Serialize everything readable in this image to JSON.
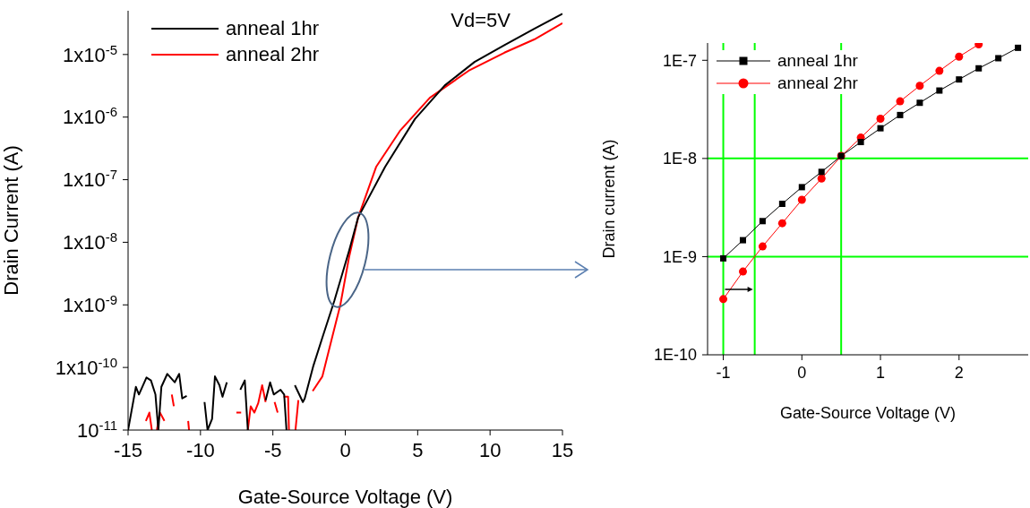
{
  "chart_data": [
    {
      "type": "line",
      "xlabel": "Gate-Source Voltage (V)",
      "ylabel": "Drain Current (A)",
      "log": "y",
      "legend": "top left",
      "annotations": [
        "Vd=5V"
      ],
      "xlim": [
        -15,
        15
      ],
      "xticks": [
        -15,
        -10,
        -5,
        0,
        5,
        10,
        15
      ],
      "ylim": [
        1e-11,
        5e-05
      ],
      "yticks": [
        {
          "value": 1e-11,
          "label": "10$^{-11}$"
        },
        {
          "value": 1e-10,
          "label": "1x10$^{-10}$"
        },
        {
          "value": 1e-09,
          "label": "1x10$^{-9}$"
        },
        {
          "value": 1e-08,
          "label": "1x10$^{-8}$"
        },
        {
          "value": 1e-07,
          "label": "1x10$^{-7}$"
        },
        {
          "value": 1e-06,
          "label": "1x10$^{-6}$"
        },
        {
          "value": 1e-05,
          "label": "1x10$^{-5}$"
        }
      ],
      "series": [
        {
          "name": "anneal 1hr",
          "color": "#000000",
          "x": [
            -15,
            -14.46,
            -14.25,
            -13.73,
            -13.42,
            -13.11,
            -12.91,
            -12.7,
            -12.29,
            -11.78,
            -11.47,
            -11.26,
            -10.95,
            -10.3,
            -9.72,
            -9.51,
            -9.2,
            -9,
            -8.69,
            -8.48,
            -8.18,
            -7.7,
            -7.25,
            -6.94,
            -6.73,
            -6.1,
            -5.5,
            -5.19,
            -4.94,
            -4.47,
            -4.22,
            -4.06,
            -3.8,
            -3.48,
            -2.93,
            -2.8,
            -2.2,
            -1.58,
            -0.76,
            0.27,
            0.89,
            2.75,
            4.81,
            6.87,
            8.93,
            10.99,
            13.05,
            15
          ],
          "values": [
            1e-11,
            4.9e-11,
            3.7e-11,
            6.9e-11,
            6.2e-11,
            3.7e-11,
            1e-11,
            4.9e-11,
            7.9e-11,
            5.8e-11,
            7.9e-11,
            3.2e-11,
            3.5e-11,
            null,
            2.8e-11,
            1e-11,
            1.5e-11,
            7.2e-11,
            5.2e-11,
            3.4e-11,
            5.8e-11,
            null,
            4.4e-11,
            6.2e-11,
            1e-11,
            null,
            3e-11,
            5.8e-11,
            3.7e-11,
            4.4e-11,
            3.7e-11,
            1e-11,
            null,
            5.2e-11,
            2.8e-11,
            3.2e-11,
            1.07e-10,
            3e-10,
            1.15e-09,
            7.4e-09,
            2.5e-08,
            1.6e-07,
            9.3e-07,
            3.2e-06,
            7.6e-06,
            1.41e-05,
            2.57e-05,
            4.47e-05
          ]
        },
        {
          "name": "anneal 2hr",
          "color": "#ff0000",
          "x": [
            -13.77,
            -13.53,
            -13.36,
            -13.2,
            -13.01,
            -12.8,
            -12.49,
            -12.2,
            -11.98,
            -11.84,
            -11.3,
            -10.85,
            -10.79,
            -9,
            -7.52,
            -7.19,
            -6.9,
            -6.73,
            -6.53,
            -6.28,
            -6.01,
            -5.74,
            -5.5,
            -5.2,
            -4.88,
            -4.67,
            -4.5,
            -4.26,
            -3.95,
            -3.89,
            -3.7,
            -3.44,
            -3.24,
            -2.7,
            -2.25,
            -1.58,
            -0.96,
            -0.34,
            0.27,
            0.89,
            2.13,
            3.77,
            5.84,
            8.52,
            10.99,
            13.05,
            15
          ],
          "values": [
            1.4e-11,
            1.9e-11,
            1e-11,
            null,
            1e-11,
            1.9e-11,
            1.4e-11,
            null,
            3.7e-11,
            2.4e-11,
            null,
            1.4e-11,
            1e-11,
            null,
            1.9e-11,
            1.9e-11,
            null,
            1e-11,
            2.4e-11,
            1.9e-11,
            2.7e-11,
            5.2e-11,
            2.8e-11,
            null,
            2.8e-11,
            1.9e-11,
            null,
            3.4e-11,
            3.4e-11,
            1e-11,
            null,
            1e-11,
            3e-11,
            null,
            4.2e-11,
            7.2e-11,
            2.7e-10,
            1e-09,
            5.9e-09,
            2.5e-08,
            1.6e-07,
            6e-07,
            2.04e-06,
            5.5e-06,
            1.07e-05,
            1.74e-05,
            3.16e-05
          ]
        }
      ]
    },
    {
      "type": "line",
      "xlabel": "Gate-Source Voltage (V)",
      "ylabel": "Drain current (A)",
      "log": "y",
      "legend": "top left",
      "xlim": [
        -1.2,
        2.88
      ],
      "xticks": [
        -1,
        0,
        1,
        2
      ],
      "ylim": [
        1e-10,
        1.5e-07
      ],
      "yticks": [
        {
          "value": 1e-10,
          "label": "1E-10"
        },
        {
          "value": 1e-09,
          "label": "1E-9"
        },
        {
          "value": 1e-08,
          "label": "1E-8"
        },
        {
          "value": 1e-07,
          "label": "1E-7"
        }
      ],
      "ref_lines": [
        {
          "axis": "y",
          "value": 1e-08,
          "color": "#00ff00"
        },
        {
          "axis": "y",
          "value": 1e-09,
          "color": "#00ff00"
        },
        {
          "axis": "x",
          "value": -1,
          "color": "#00ff00"
        },
        {
          "axis": "x",
          "value": -0.6,
          "color": "#00ff00"
        },
        {
          "axis": "x",
          "value": 0.5,
          "color": "#00ff00"
        }
      ],
      "series": [
        {
          "name": "anneal 1hr",
          "color": "#000000",
          "marker": "square",
          "x": [
            -1,
            -0.75,
            -0.5,
            -0.25,
            0,
            0.25,
            0.5,
            0.75,
            1,
            1.25,
            1.5,
            1.75,
            2,
            2.25,
            2.5,
            2.75
          ],
          "values": [
            9.6e-10,
            1.47e-09,
            2.3e-09,
            3.45e-09,
            5.1e-09,
            7.3e-09,
            1.06e-08,
            1.47e-08,
            2.03e-08,
            2.77e-08,
            3.69e-08,
            4.92e-08,
            6.38e-08,
            8.28e-08,
            1.05e-07,
            1.34e-07
          ]
        },
        {
          "name": "anneal 2hr",
          "color": "#ff0000",
          "marker": "circle",
          "x": [
            -1,
            -0.75,
            -0.5,
            -0.25,
            0,
            0.25,
            0.5,
            0.75,
            1,
            1.25,
            1.5,
            1.75,
            2,
            2.25
          ],
          "values": [
            3.69e-10,
            7.05e-10,
            1.27e-09,
            2.19e-09,
            3.79e-09,
            6.25e-09,
            1.06e-08,
            1.63e-08,
            2.54e-08,
            3.82e-08,
            5.5e-08,
            7.8e-08,
            1.09e-07,
            1.45e-07
          ]
        }
      ]
    }
  ]
}
